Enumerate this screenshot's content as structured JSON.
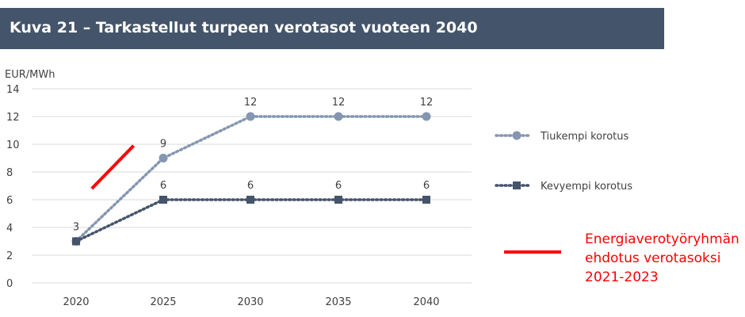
{
  "header": {
    "title": "Kuva 21 – Tarkastellut turpeen verotasot vuoteen 2040"
  },
  "chart_data": {
    "type": "line",
    "title": "Kuva 21 – Tarkastellut turpeen verotasot vuoteen 2040",
    "ylabel": "EUR/MWh",
    "xlabel": "",
    "categories": [
      "2020",
      "2025",
      "2030",
      "2035",
      "2040"
    ],
    "yticks": [
      "0",
      "2",
      "4",
      "6",
      "8",
      "10",
      "12",
      "14"
    ],
    "ylim": [
      0,
      14
    ],
    "grid": true,
    "legend_position": "right",
    "series": [
      {
        "name": "Tiukempi korotus",
        "values": [
          3,
          9,
          12,
          12,
          12
        ],
        "labels": [
          "",
          "9",
          "12",
          "12",
          "12"
        ],
        "color": "#8496b0",
        "marker": "circle"
      },
      {
        "name": "Kevyempi korotus",
        "values": [
          3,
          6,
          6,
          6,
          6
        ],
        "labels": [
          "3",
          "6",
          "6",
          "6",
          "6"
        ],
        "color": "#44546a",
        "marker": "square"
      }
    ],
    "annotation": {
      "text": "Energiaverotyöryhmän ehdotus verotasoksi 2021-2023",
      "lines": [
        "Energiaverotyöryhmän",
        "ehdotus verotasoksi",
        "2021-2023"
      ],
      "color": "#ff0000",
      "segment": {
        "x": [
          2020.9,
          2023.3
        ],
        "y": [
          6.8,
          9.9
        ]
      }
    }
  },
  "note": {
    "text": "Energiaverotyöryhmän\nehdotus verotasoksi\n2021-2023"
  }
}
